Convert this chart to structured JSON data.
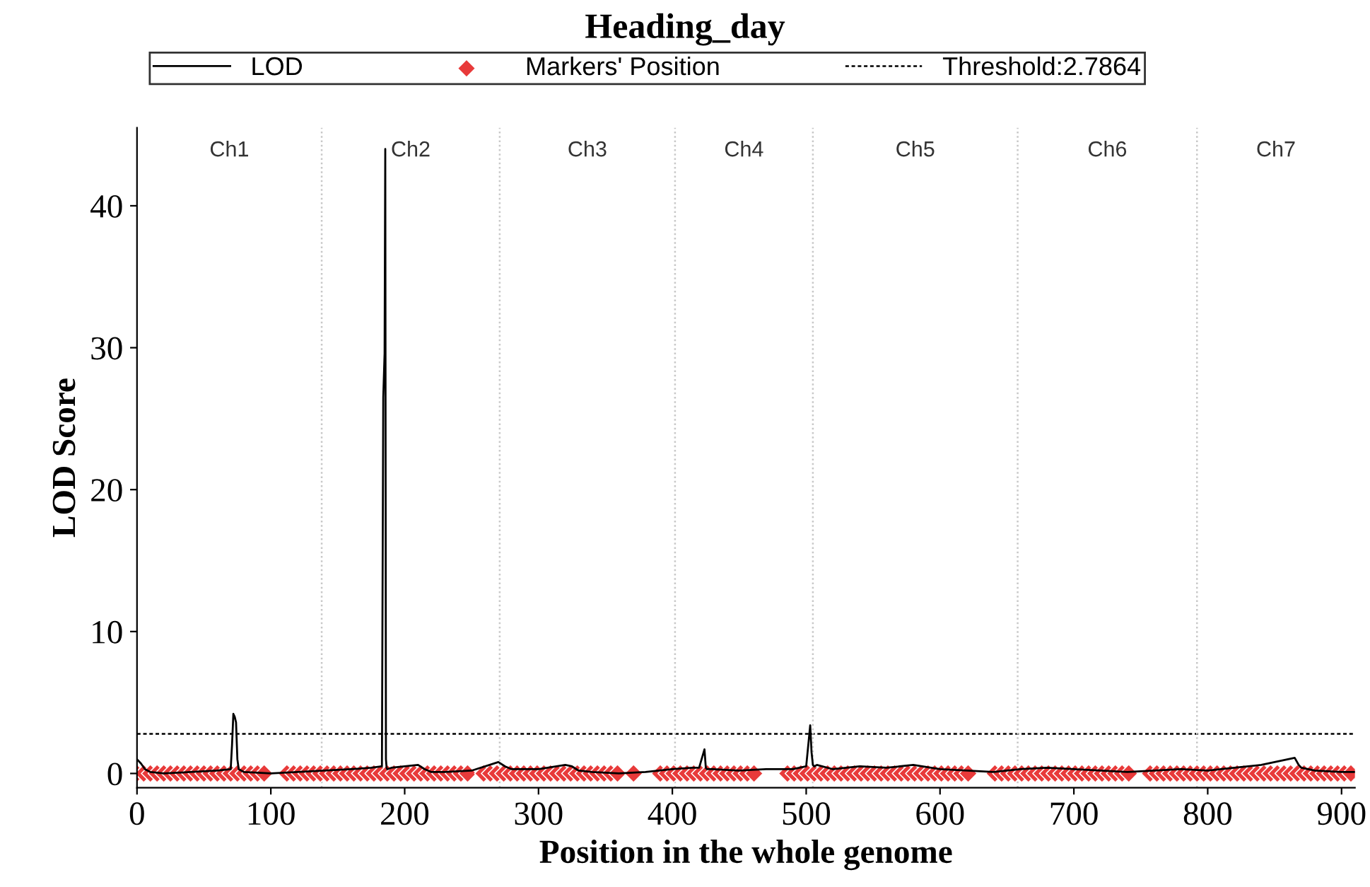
{
  "chart_data": {
    "type": "line",
    "title": "Heading_day",
    "xlabel": "Position in the whole genome",
    "ylabel": "LOD Score",
    "xlim": [
      0,
      910
    ],
    "xticks": [
      0,
      100,
      200,
      300,
      400,
      500,
      600,
      700,
      800,
      900
    ],
    "ylim": [
      -1,
      45.5
    ],
    "yticks": [
      0,
      10,
      20,
      30,
      40
    ],
    "grid": false,
    "legend": "top",
    "series": [
      {
        "name": "LOD",
        "color": "#000000",
        "marker": "none",
        "line_style": "solid",
        "x": [
          0,
          3,
          6,
          10,
          20,
          40,
          60,
          70,
          71,
          72,
          73,
          74,
          75,
          76,
          80,
          100,
          120,
          140,
          160,
          175,
          183,
          184,
          185,
          185.5,
          186,
          186.5,
          187,
          190,
          200,
          210,
          215,
          220,
          230,
          250,
          270,
          275,
          280,
          290,
          300,
          320,
          325,
          330,
          340,
          360,
          380,
          400,
          415,
          420,
          424,
          425,
          426,
          430,
          450,
          470,
          490,
          500,
          503,
          504,
          505,
          506,
          508,
          520,
          540,
          560,
          580,
          600,
          620,
          640,
          660,
          680,
          700,
          720,
          740,
          760,
          780,
          800,
          820,
          840,
          850,
          855,
          860,
          865,
          868,
          870,
          880,
          900,
          910
        ],
        "values": [
          1.0,
          0.7,
          0.3,
          0.1,
          0.0,
          0.1,
          0.2,
          0.3,
          2.0,
          4.2,
          4.0,
          3.6,
          1.0,
          0.3,
          0.1,
          0.0,
          0.1,
          0.2,
          0.3,
          0.4,
          0.5,
          26.5,
          29.6,
          44.0,
          1.0,
          0.4,
          0.3,
          0.4,
          0.5,
          0.6,
          0.3,
          0.1,
          0.1,
          0.2,
          0.8,
          0.5,
          0.3,
          0.3,
          0.3,
          0.6,
          0.5,
          0.2,
          0.1,
          0.0,
          0.1,
          0.3,
          0.4,
          0.4,
          1.7,
          0.4,
          0.3,
          0.3,
          0.2,
          0.3,
          0.3,
          0.5,
          3.4,
          1.5,
          0.6,
          0.5,
          0.6,
          0.3,
          0.5,
          0.4,
          0.6,
          0.3,
          0.2,
          0.1,
          0.3,
          0.4,
          0.3,
          0.2,
          0.1,
          0.2,
          0.3,
          0.2,
          0.4,
          0.6,
          0.8,
          0.9,
          1.0,
          1.1,
          0.6,
          0.4,
          0.2,
          0.1,
          0.1
        ]
      },
      {
        "name": "Markers' Position",
        "type": "scatter",
        "color": "#e83a3a",
        "marker": "diamond",
        "x": [
          0,
          5,
          10,
          15,
          20,
          25,
          30,
          35,
          40,
          45,
          50,
          55,
          60,
          65,
          70,
          75,
          80,
          85,
          90,
          95,
          112,
          117,
          122,
          127,
          132,
          137,
          142,
          147,
          152,
          157,
          162,
          167,
          172,
          177,
          182,
          187,
          192,
          197,
          202,
          207,
          212,
          217,
          222,
          227,
          232,
          237,
          242,
          247,
          259,
          264,
          269,
          274,
          279,
          284,
          289,
          294,
          299,
          304,
          309,
          314,
          319,
          324,
          329,
          334,
          339,
          344,
          349,
          354,
          359,
          371,
          391,
          396,
          401,
          406,
          411,
          416,
          421,
          426,
          431,
          436,
          441,
          446,
          451,
          456,
          461,
          486,
          491,
          496,
          501,
          506,
          511,
          516,
          521,
          526,
          531,
          536,
          541,
          546,
          551,
          556,
          561,
          566,
          571,
          576,
          581,
          586,
          591,
          596,
          601,
          606,
          611,
          616,
          621,
          641,
          646,
          651,
          656,
          661,
          666,
          671,
          676,
          681,
          686,
          691,
          696,
          701,
          706,
          711,
          716,
          721,
          726,
          731,
          736,
          741,
          757,
          762,
          767,
          772,
          777,
          782,
          787,
          792,
          797,
          802,
          807,
          812,
          817,
          822,
          827,
          832,
          837,
          842,
          847,
          852,
          857,
          862,
          867,
          872,
          877,
          882,
          887,
          892,
          897,
          902,
          907
        ],
        "values": [
          0,
          0,
          0,
          0,
          0,
          0,
          0,
          0,
          0,
          0,
          0,
          0,
          0,
          0,
          0,
          0,
          0,
          0,
          0,
          0,
          0,
          0,
          0,
          0,
          0,
          0,
          0,
          0,
          0,
          0,
          0,
          0,
          0,
          0,
          0,
          0,
          0,
          0,
          0,
          0,
          0,
          0,
          0,
          0,
          0,
          0,
          0,
          0,
          0,
          0,
          0,
          0,
          0,
          0,
          0,
          0,
          0,
          0,
          0,
          0,
          0,
          0,
          0,
          0,
          0,
          0,
          0,
          0,
          0,
          0,
          0,
          0,
          0,
          0,
          0,
          0,
          0,
          0,
          0,
          0,
          0,
          0,
          0,
          0,
          0,
          0,
          0,
          0,
          0,
          0,
          0,
          0,
          0,
          0,
          0,
          0,
          0,
          0,
          0,
          0,
          0,
          0,
          0,
          0,
          0,
          0,
          0,
          0,
          0,
          0,
          0,
          0,
          0,
          0,
          0,
          0,
          0,
          0,
          0,
          0,
          0,
          0,
          0,
          0,
          0,
          0,
          0,
          0,
          0,
          0,
          0,
          0,
          0,
          0,
          0,
          0,
          0,
          0,
          0,
          0,
          0,
          0,
          0,
          0,
          0,
          0,
          0,
          0,
          0,
          0,
          0,
          0,
          0,
          0,
          0,
          0,
          0,
          0,
          0,
          0,
          0,
          0,
          0,
          0,
          0
        ]
      }
    ],
    "ref_lines": [
      {
        "axis": "y",
        "value": 2.7864,
        "label": "Threshold:2.7864",
        "color": "#000000",
        "line_style": "dashed"
      },
      {
        "axis": "x",
        "value": 138,
        "color": "#c8c8c8",
        "line_style": "dotted"
      },
      {
        "axis": "x",
        "value": 271,
        "color": "#c8c8c8",
        "line_style": "dotted"
      },
      {
        "axis": "x",
        "value": 402,
        "color": "#c8c8c8",
        "line_style": "dotted"
      },
      {
        "axis": "x",
        "value": 505,
        "color": "#c8c8c8",
        "line_style": "dotted"
      },
      {
        "axis": "x",
        "value": 658,
        "color": "#c8c8c8",
        "line_style": "dotted"
      },
      {
        "axis": "x",
        "value": 792,
        "color": "#c8c8c8",
        "line_style": "dotted"
      }
    ],
    "annotations": [
      "Ch1",
      "Ch2",
      "Ch3",
      "Ch4",
      "Ch5",
      "Ch6",
      "Ch7"
    ]
  }
}
